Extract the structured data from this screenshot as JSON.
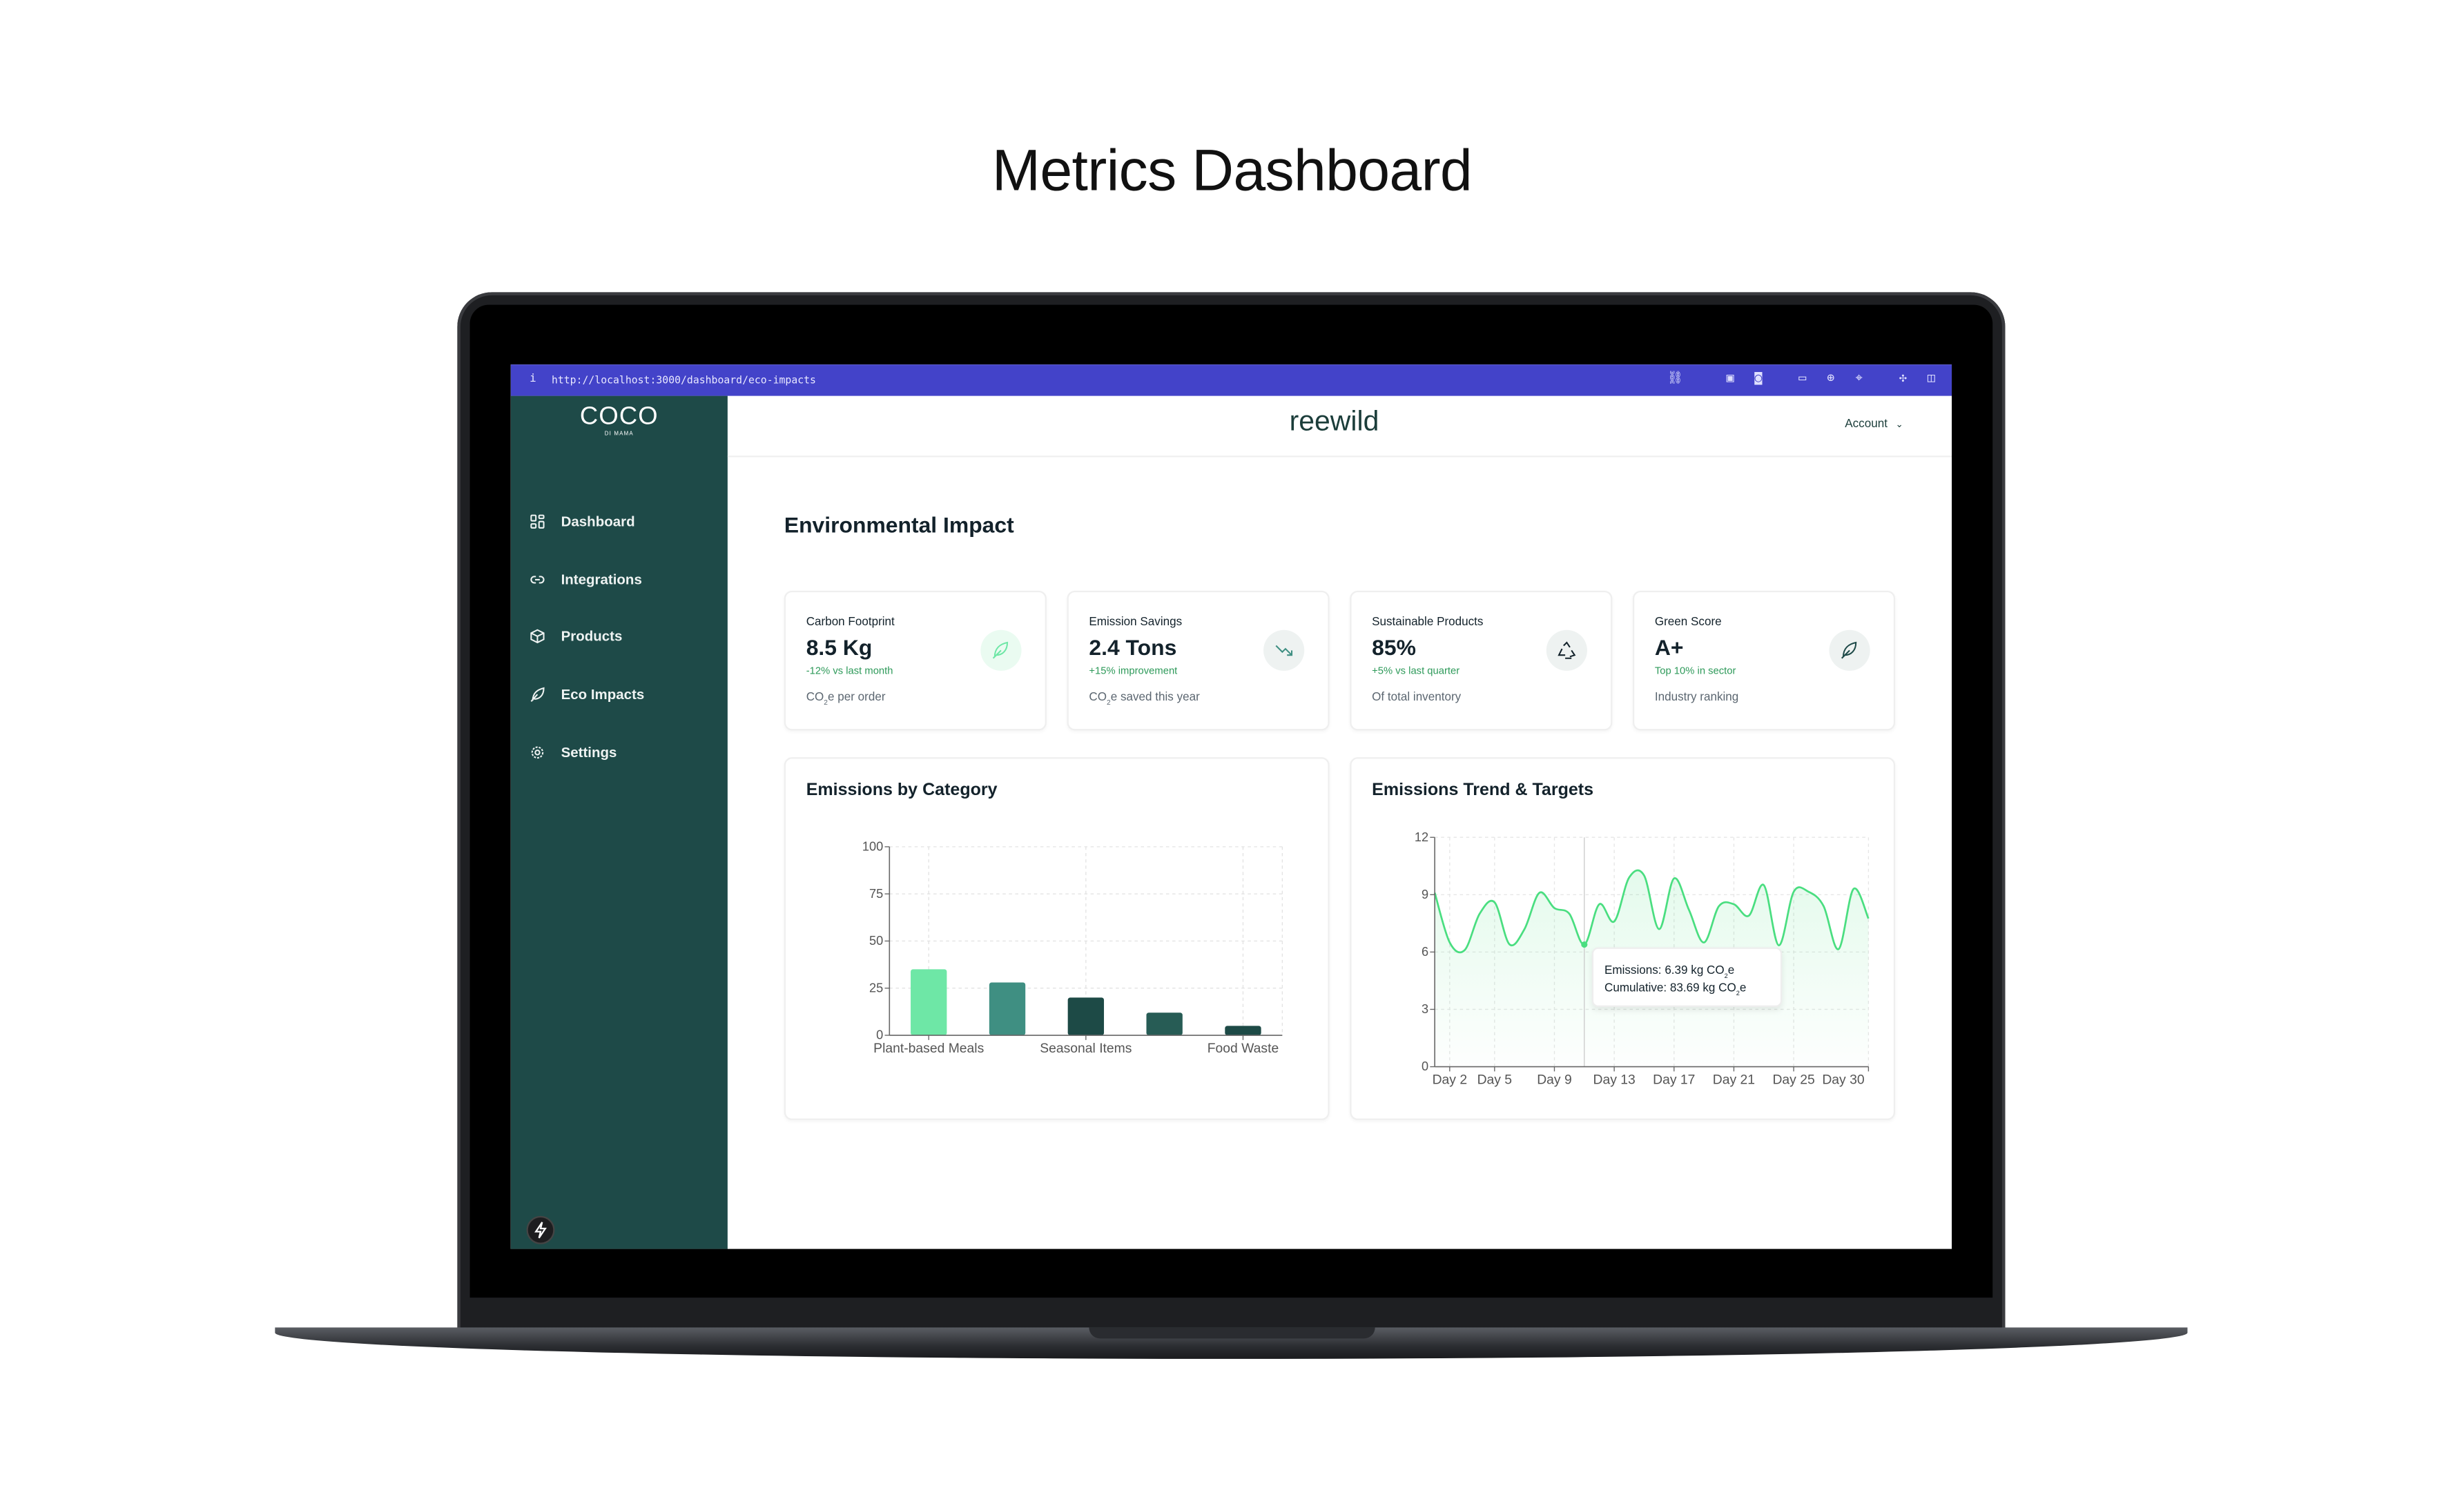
{
  "page_title": "Metrics Dashboard",
  "browser": {
    "url": "http://localhost:3000/dashboard/eco-impacts",
    "accent": "#4343c9"
  },
  "sidebar": {
    "logo_main": "COCO",
    "logo_sub": "DI MAMA",
    "color": "#1e4a48",
    "items": [
      {
        "label": "Dashboard",
        "icon": "grid-icon"
      },
      {
        "label": "Integrations",
        "icon": "link-icon"
      },
      {
        "label": "Products",
        "icon": "box-icon"
      },
      {
        "label": "Eco Impacts",
        "icon": "leaf-icon"
      },
      {
        "label": "Settings",
        "icon": "gear-icon"
      }
    ]
  },
  "header": {
    "brand": "reewild",
    "account_label": "Account"
  },
  "main": {
    "section_title": "Environmental Impact",
    "kpis": [
      {
        "label": "Carbon Footprint",
        "value": "8.5 Kg",
        "change": "-12% vs last month",
        "sub_pre": "CO",
        "sub_sub": "2",
        "sub_post": "e per order",
        "icon": "leaf-icon"
      },
      {
        "label": "Emission Savings",
        "value": "2.4 Tons",
        "change": "+15% improvement",
        "sub_pre": "CO",
        "sub_sub": "2",
        "sub_post": "e saved this year",
        "icon": "trending-down-icon"
      },
      {
        "label": "Sustainable Products",
        "value": "85%",
        "change": "+5% vs last quarter",
        "sub_pre": "Of total inventory",
        "sub_sub": "",
        "sub_post": "",
        "icon": "recycle-icon"
      },
      {
        "label": "Green Score",
        "value": "A+",
        "change": "Top 10% in sector",
        "sub_pre": "Industry ranking",
        "sub_sub": "",
        "sub_post": "",
        "icon": "leaf-icon"
      }
    ]
  },
  "chart_data": [
    {
      "type": "bar",
      "title": "Emissions by Category",
      "categories": [
        "Plant-based Meals",
        "",
        "Seasonal Items",
        "",
        "Food Waste"
      ],
      "values": [
        35,
        28,
        20,
        12,
        5
      ],
      "colors": [
        "#6ee7a6",
        "#3f8f82",
        "#1d4a46",
        "#275c55",
        "#1d4a46"
      ],
      "ylim": [
        0,
        100
      ],
      "yticks": [
        0,
        25,
        50,
        75,
        100
      ],
      "grid": true
    },
    {
      "type": "area",
      "title": "Emissions Trend & Targets",
      "x": [
        "Day 1",
        "Day 2",
        "Day 3",
        "Day 4",
        "Day 5",
        "Day 6",
        "Day 7",
        "Day 8",
        "Day 9",
        "Day 10",
        "Day 11",
        "Day 12",
        "Day 13",
        "Day 14",
        "Day 15",
        "Day 16",
        "Day 17",
        "Day 18",
        "Day 19",
        "Day 20",
        "Day 21",
        "Day 22",
        "Day 23",
        "Day 24",
        "Day 25",
        "Day 26",
        "Day 27",
        "Day 28",
        "Day 29",
        "Day 30"
      ],
      "values": [
        9.1,
        6.5,
        6.1,
        8.0,
        8.6,
        6.4,
        7.2,
        9.1,
        8.3,
        8.0,
        6.39,
        8.5,
        7.6,
        9.9,
        10.0,
        7.2,
        9.85,
        8.2,
        6.5,
        8.4,
        8.5,
        7.9,
        9.5,
        6.35,
        9.15,
        9.15,
        8.4,
        6.15,
        9.3,
        7.75
      ],
      "xticks": [
        "Day 2",
        "Day 5",
        "Day 9",
        "Day 13",
        "Day 17",
        "Day 21",
        "Day 25",
        "Day 30"
      ],
      "ylim": [
        0,
        12
      ],
      "yticks": [
        0,
        3,
        6,
        9,
        12
      ],
      "color": "#4ade80",
      "grid": true,
      "tooltip": {
        "day": "Day 11",
        "line1_label": "Emissions:",
        "line1_value": "6.39 kg CO",
        "line2_label": "Cumulative:",
        "line2_value": "83.69 kg CO",
        "sub": "2",
        "suffix": "e"
      }
    }
  ]
}
